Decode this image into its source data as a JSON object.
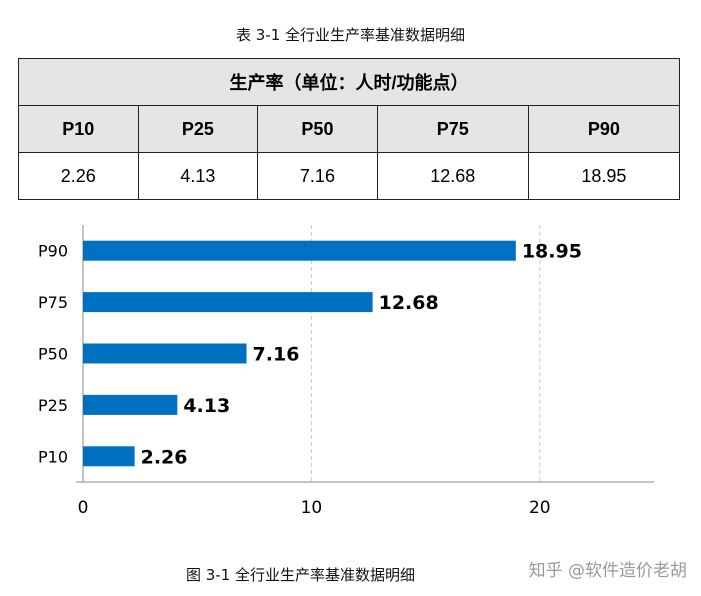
{
  "table": {
    "caption": "表 3-1  全行业生产率基准数据明细",
    "header": "生产率（单位：人时/功能点）",
    "columns": [
      "P10",
      "P25",
      "P50",
      "P75",
      "P90"
    ],
    "values": [
      "2.26",
      "4.13",
      "7.16",
      "12.68",
      "18.95"
    ]
  },
  "chart_data": {
    "type": "bar",
    "orientation": "horizontal",
    "categories": [
      "P90",
      "P75",
      "P50",
      "P25",
      "P10"
    ],
    "values": [
      18.95,
      12.68,
      7.16,
      4.13,
      2.26
    ],
    "data_labels": [
      "18.95",
      "12.68",
      "7.16",
      "4.13",
      "2.26"
    ],
    "xlim": [
      0,
      25
    ],
    "xticks": [
      0,
      10,
      20
    ],
    "xtick_labels": [
      "0",
      "10",
      "20"
    ],
    "title": "",
    "xlabel": "",
    "ylabel": "",
    "grid": "vertical dashed",
    "bar_color": "#0070c0"
  },
  "figure": {
    "caption": "图 3-1  全行业生产率基准数据明细"
  },
  "watermark": "知乎 @软件造价老胡"
}
